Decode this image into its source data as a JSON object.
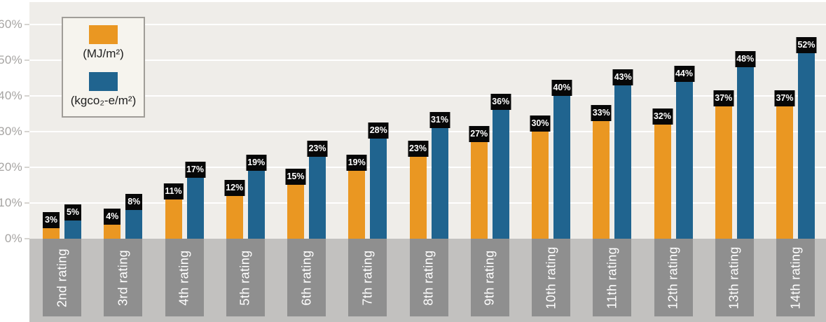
{
  "colors": {
    "background": "#ffffff",
    "plot_bg": "#efede9",
    "strip_bg": "#c2c1bf",
    "band_bg": "#8f8f8f",
    "grid": "#ffffff",
    "axis_text": "#a6a4a2",
    "tick": "#d6d4d0",
    "bar_label_bg": "#070707",
    "bar_label_text": "#ffffff",
    "category_text": "#ffffff",
    "legend_bg": "#f6f4ee",
    "legend_border": "#a09d98",
    "legend_text": "#1f1f1f"
  },
  "chart_data": {
    "type": "bar",
    "title": "",
    "xlabel": "",
    "ylabel": "",
    "grid": true,
    "legend_position": "top-left",
    "ylim": [
      0,
      66
    ],
    "y_ticks": [
      "0%",
      "10%",
      "20%",
      "30%",
      "40%",
      "50%",
      "60%"
    ],
    "categories": [
      "2nd rating",
      "3rd rating",
      "4th rating",
      "5th rating",
      "6th rating",
      "7th rating",
      "8th rating",
      "9th rating",
      "10th rating",
      "11th rating",
      "12th rating",
      "13th rating",
      "14th rating"
    ],
    "series": [
      {
        "name": "(MJ/m²)",
        "color": "#ea9722",
        "values": [
          3,
          4,
          11,
          12,
          15,
          19,
          23,
          27,
          30,
          33,
          32,
          37,
          37
        ],
        "labels": [
          "3%",
          "4%",
          "11%",
          "12%",
          "15%",
          "19%",
          "23%",
          "27%",
          "30%",
          "33%",
          "32%",
          "37%",
          "37%"
        ]
      },
      {
        "name": "(kgco₂-e/m²)",
        "color": "#20648f",
        "values": [
          5,
          8,
          17,
          19,
          23,
          28,
          31,
          36,
          40,
          43,
          44,
          48,
          52
        ],
        "labels": [
          "5%",
          "8%",
          "17%",
          "19%",
          "23%",
          "28%",
          "31%",
          "36%",
          "40%",
          "43%",
          "44%",
          "48%",
          "52%"
        ]
      }
    ]
  }
}
